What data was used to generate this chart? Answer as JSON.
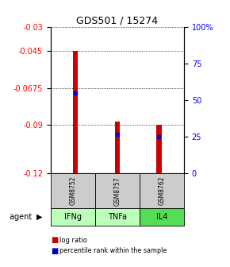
{
  "title": "GDS501 / 15274",
  "samples": [
    "GSM8752",
    "GSM8757",
    "GSM8762"
  ],
  "agents": [
    "IFNg",
    "TNFa",
    "IL4"
  ],
  "log_ratios": [
    -0.045,
    -0.088,
    -0.09
  ],
  "percentile_ranks_pct": [
    55,
    27,
    25
  ],
  "ylim_left": [
    -0.12,
    -0.03
  ],
  "yticks_left": [
    -0.12,
    -0.09,
    -0.0675,
    -0.045,
    -0.03
  ],
  "ytick_labels_left": [
    "-0.12",
    "-0.09",
    "-0.0675",
    "-0.045",
    "-0.03"
  ],
  "ylim_right": [
    0,
    100
  ],
  "yticks_right": [
    0,
    25,
    50,
    75,
    100
  ],
  "ytick_labels_right": [
    "0",
    "25",
    "50",
    "75",
    "100%"
  ],
  "bar_color": "#cc0000",
  "square_color": "#0000cc",
  "bar_width": 0.12,
  "gsm_color": "#cccccc",
  "agent_color_light": "#aaffaa",
  "agent_color_medium": "#66ee66",
  "agent_colors": [
    "#bbffbb",
    "#bbffbb",
    "#55dd55"
  ]
}
